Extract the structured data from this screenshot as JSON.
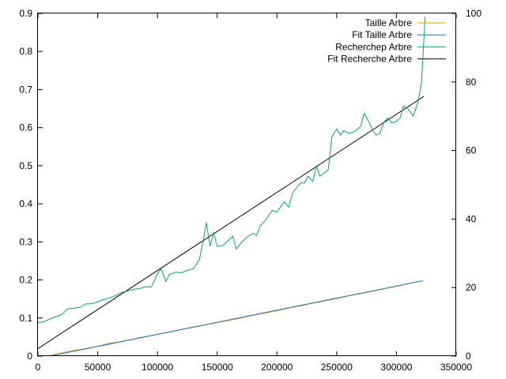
{
  "chart_data": {
    "type": "line",
    "title": "",
    "xlabel": "",
    "ylabel": "",
    "y2label": "",
    "xlim": [
      0,
      350000
    ],
    "ylim": [
      0,
      0.9
    ],
    "y2lim": [
      0,
      100
    ],
    "grid": false,
    "legend_position": "top-right",
    "x_ticks": [
      "0",
      "50000",
      "100000",
      "150000",
      "200000",
      "250000",
      "300000",
      "350000"
    ],
    "y_ticks": [
      "0",
      "0.1",
      "0.2",
      "0.3",
      "0.4",
      "0.5",
      "0.6",
      "0.7",
      "0.8",
      "0.9"
    ],
    "y2_ticks": [
      "0",
      "20",
      "40",
      "60",
      "80",
      "100"
    ],
    "series": [
      {
        "name": "Taille Arbre",
        "axis": "y",
        "color": "#e8a21e",
        "x": [
          10000,
          20000,
          30000,
          40000,
          50000,
          60000,
          70000,
          80000,
          90000,
          100000,
          110000,
          120000,
          130000,
          140000,
          150000,
          160000,
          170000,
          180000,
          190000,
          200000,
          210000,
          220000,
          230000,
          240000,
          250000,
          260000,
          270000,
          280000,
          290000,
          300000,
          310000,
          322000
        ],
        "values": [
          0.001,
          0.009,
          0.015,
          0.02,
          0.026,
          0.034,
          0.038,
          0.045,
          0.051,
          0.057,
          0.063,
          0.07,
          0.075,
          0.082,
          0.088,
          0.094,
          0.1,
          0.107,
          0.113,
          0.119,
          0.126,
          0.132,
          0.139,
          0.145,
          0.151,
          0.158,
          0.164,
          0.17,
          0.177,
          0.183,
          0.19,
          0.198
        ]
      },
      {
        "name": "Fit Taille Arbre",
        "axis": "y",
        "color": "#1f77b4",
        "x": [
          10000,
          322000
        ],
        "values": [
          0.0,
          0.198
        ]
      },
      {
        "name": "Recherchep Arbre",
        "axis": "y2",
        "color": "#0c9f6e",
        "x": [
          0,
          5000,
          10000,
          15000,
          20000,
          25000,
          30000,
          35000,
          40000,
          45000,
          50000,
          55000,
          60000,
          65000,
          70000,
          75000,
          80000,
          85000,
          90000,
          95000,
          100000,
          103000,
          107000,
          110000,
          115000,
          120000,
          125000,
          130000,
          135000,
          138000,
          141000,
          144000,
          147000,
          150000,
          155000,
          160000,
          163000,
          166000,
          170000,
          175000,
          180000,
          183000,
          186000,
          190000,
          193000,
          196000,
          200000,
          203000,
          206000,
          210000,
          213000,
          216000,
          220000,
          223000,
          226000,
          230000,
          233000,
          236000,
          240000,
          243000,
          246000,
          250000,
          253000,
          256000,
          260000,
          265000,
          270000,
          273000,
          276000,
          280000,
          283000,
          286000,
          290000,
          293000,
          296000,
          300000,
          303000,
          306000,
          310000,
          314000,
          318000,
          321000,
          324000
        ],
        "values": [
          9.8,
          10.0,
          10.8,
          11.5,
          12.2,
          13.8,
          14.0,
          14.2,
          15.2,
          15.3,
          15.8,
          16.5,
          17.0,
          17.6,
          18.6,
          19.0,
          19.5,
          19.7,
          20.2,
          20.2,
          24.0,
          25.5,
          21.8,
          23.8,
          24.5,
          24.3,
          25.0,
          25.5,
          28.0,
          33.0,
          39.0,
          32.0,
          36.0,
          32.0,
          32.3,
          34.0,
          35.0,
          31.3,
          33.0,
          34.8,
          35.8,
          35.2,
          38.0,
          39.5,
          41.0,
          42.5,
          42.0,
          43.5,
          45.0,
          43.5,
          47.5,
          49.0,
          50.5,
          50.5,
          52.5,
          51.0,
          55.5,
          52.5,
          53.5,
          54.5,
          64.0,
          66.3,
          64.5,
          65.8,
          65.0,
          65.5,
          67.0,
          70.8,
          69.0,
          66.0,
          64.5,
          65.0,
          68.5,
          69.5,
          68.0,
          68.5,
          69.5,
          73.0,
          72.0,
          70.0,
          74.0,
          80.0,
          99.0
        ]
      },
      {
        "name": "Fit Recherche Arbre",
        "axis": "y2",
        "color": "#000000",
        "x": [
          0,
          323000
        ],
        "values": [
          2.2,
          75.8
        ]
      }
    ]
  }
}
